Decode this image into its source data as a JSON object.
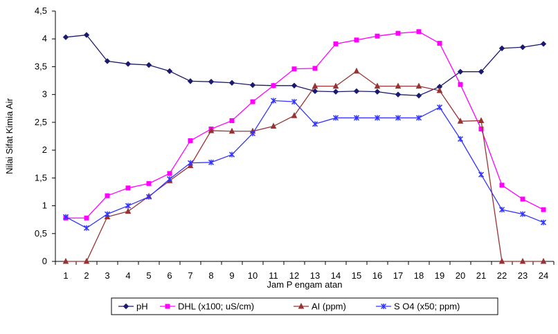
{
  "chart_data": {
    "type": "line",
    "title": "",
    "xlabel": "Jam  P engam atan",
    "ylabel": "Nilai Sifat Kimia Air",
    "ylim": [
      0,
      4.5
    ],
    "grid": false,
    "legend_position": "bottom",
    "categories": [
      "1",
      "2",
      "3",
      "4",
      "5",
      "6",
      "7",
      "8",
      "9",
      "10",
      "11",
      "12",
      "13",
      "14",
      "15",
      "16",
      "17",
      "18",
      "19",
      "20",
      "21",
      "22",
      "23",
      "24"
    ],
    "y_ticks": [
      "0",
      "0,5",
      "1",
      "1,5",
      "2",
      "2,5",
      "3",
      "3,5",
      "4",
      "4,5"
    ],
    "y_tick_values": [
      0,
      0.5,
      1,
      1.5,
      2,
      2.5,
      3,
      3.5,
      4,
      4.5
    ],
    "series": [
      {
        "name": "pH",
        "color": "#1a1a6e",
        "marker": "diamond",
        "values": [
          4.03,
          4.07,
          3.6,
          3.55,
          3.53,
          3.42,
          3.24,
          3.23,
          3.21,
          3.17,
          3.16,
          3.16,
          3.06,
          3.05,
          3.06,
          3.05,
          3.0,
          2.98,
          3.14,
          3.41,
          3.41,
          3.83,
          3.85,
          3.91
        ]
      },
      {
        "name": "DHL  (x100;  uS/cm)",
        "color": "#ff00ff",
        "marker": "square",
        "values": [
          0.78,
          0.78,
          1.18,
          1.32,
          1.4,
          1.58,
          2.17,
          2.38,
          2.53,
          2.87,
          3.16,
          3.46,
          3.47,
          3.91,
          3.98,
          4.05,
          4.1,
          4.13,
          3.92,
          3.18,
          2.38,
          1.37,
          1.12,
          0.93
        ]
      },
      {
        "name": "AI (ppm)",
        "color": "#993333",
        "marker": "triangle",
        "values": [
          0,
          0,
          0.8,
          0.9,
          1.17,
          1.45,
          1.72,
          2.35,
          2.34,
          2.34,
          2.43,
          2.62,
          3.15,
          3.15,
          3.42,
          3.15,
          3.15,
          3.15,
          3.07,
          2.52,
          2.53,
          0,
          0,
          0
        ]
      },
      {
        "name": "S O4  (x50;  ppm)",
        "color": "#3333ff",
        "marker": "star",
        "values": [
          0.8,
          0.6,
          0.85,
          1.0,
          1.16,
          1.48,
          1.77,
          1.78,
          1.92,
          2.3,
          2.89,
          2.87,
          2.47,
          2.58,
          2.58,
          2.58,
          2.58,
          2.58,
          2.77,
          2.2,
          1.56,
          0.93,
          0.85,
          0.7
        ]
      }
    ]
  }
}
